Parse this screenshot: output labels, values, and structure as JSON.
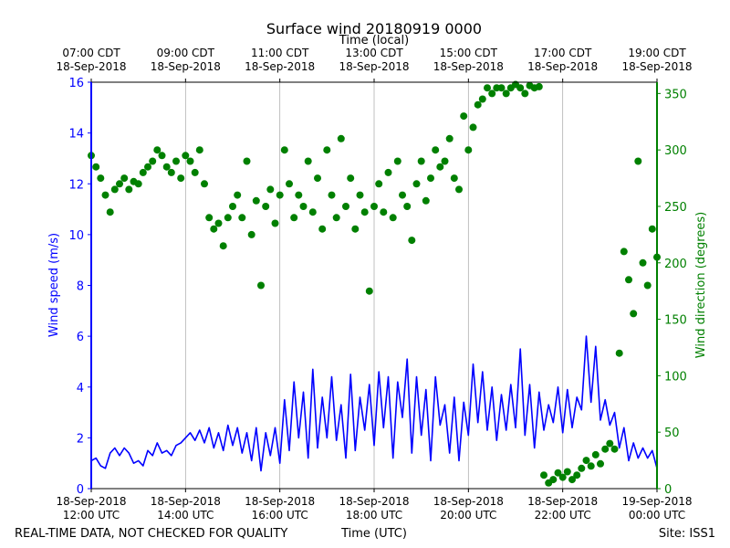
{
  "chart_data": {
    "type": "line",
    "title": "Surface wind 20180919 0000",
    "top_axis_label": "Time (local)",
    "xlabel": "Time (UTC)",
    "ylabel": "Wind speed (m/s)",
    "y2label": "Wind direction (degrees)",
    "footer_left": "REAL-TIME DATA, NOT CHECKED FOR QUALITY",
    "footer_right": "Site: ISS1",
    "xlim_hours_utc": [
      12,
      24
    ],
    "ylim": [
      0,
      16
    ],
    "y2lim": [
      0,
      360
    ],
    "grid": "vertical",
    "x_ticks_utc": [
      {
        "hour": 12,
        "date": "18-Sep-2018",
        "time": "12:00 UTC"
      },
      {
        "hour": 14,
        "date": "18-Sep-2018",
        "time": "14:00 UTC"
      },
      {
        "hour": 16,
        "date": "18-Sep-2018",
        "time": "16:00 UTC"
      },
      {
        "hour": 18,
        "date": "18-Sep-2018",
        "time": "18:00 UTC"
      },
      {
        "hour": 20,
        "date": "18-Sep-2018",
        "time": "20:00 UTC"
      },
      {
        "hour": 22,
        "date": "18-Sep-2018",
        "time": "22:00 UTC"
      },
      {
        "hour": 24,
        "date": "19-Sep-2018",
        "time": "00:00 UTC"
      }
    ],
    "x_ticks_local": [
      {
        "hour": 12,
        "time": "07:00 CDT",
        "date": "18-Sep-2018"
      },
      {
        "hour": 14,
        "time": "09:00 CDT",
        "date": "18-Sep-2018"
      },
      {
        "hour": 16,
        "time": "11:00 CDT",
        "date": "18-Sep-2018"
      },
      {
        "hour": 18,
        "time": "13:00 CDT",
        "date": "18-Sep-2018"
      },
      {
        "hour": 20,
        "time": "15:00 CDT",
        "date": "18-Sep-2018"
      },
      {
        "hour": 22,
        "time": "17:00 CDT",
        "date": "18-Sep-2018"
      },
      {
        "hour": 24,
        "time": "19:00 CDT",
        "date": "18-Sep-2018"
      }
    ],
    "y_ticks": [
      0,
      2,
      4,
      6,
      8,
      10,
      12,
      14,
      16
    ],
    "y2_ticks": [
      0,
      50,
      100,
      150,
      200,
      250,
      300,
      350
    ],
    "series": [
      {
        "name": "Wind speed",
        "axis": "left",
        "style": "line",
        "color": "#0000ff",
        "points": [
          [
            12.0,
            1.1
          ],
          [
            12.1,
            1.2
          ],
          [
            12.2,
            0.9
          ],
          [
            12.3,
            0.8
          ],
          [
            12.4,
            1.4
          ],
          [
            12.5,
            1.6
          ],
          [
            12.6,
            1.3
          ],
          [
            12.7,
            1.6
          ],
          [
            12.8,
            1.4
          ],
          [
            12.9,
            1.0
          ],
          [
            13.0,
            1.1
          ],
          [
            13.1,
            0.9
          ],
          [
            13.2,
            1.5
          ],
          [
            13.3,
            1.3
          ],
          [
            13.4,
            1.8
          ],
          [
            13.5,
            1.4
          ],
          [
            13.6,
            1.5
          ],
          [
            13.7,
            1.3
          ],
          [
            13.8,
            1.7
          ],
          [
            13.9,
            1.8
          ],
          [
            14.0,
            2.0
          ],
          [
            14.1,
            2.2
          ],
          [
            14.2,
            1.9
          ],
          [
            14.3,
            2.3
          ],
          [
            14.4,
            1.8
          ],
          [
            14.5,
            2.4
          ],
          [
            14.6,
            1.6
          ],
          [
            14.7,
            2.2
          ],
          [
            14.8,
            1.5
          ],
          [
            14.9,
            2.5
          ],
          [
            15.0,
            1.7
          ],
          [
            15.1,
            2.4
          ],
          [
            15.2,
            1.4
          ],
          [
            15.3,
            2.2
          ],
          [
            15.4,
            1.1
          ],
          [
            15.5,
            2.4
          ],
          [
            15.6,
            0.7
          ],
          [
            15.7,
            2.2
          ],
          [
            15.8,
            1.3
          ],
          [
            15.9,
            2.4
          ],
          [
            16.0,
            1.0
          ],
          [
            16.1,
            3.5
          ],
          [
            16.2,
            1.5
          ],
          [
            16.3,
            4.2
          ],
          [
            16.4,
            2.0
          ],
          [
            16.5,
            3.8
          ],
          [
            16.6,
            1.2
          ],
          [
            16.7,
            4.7
          ],
          [
            16.8,
            1.6
          ],
          [
            16.9,
            3.6
          ],
          [
            17.0,
            2.0
          ],
          [
            17.1,
            4.4
          ],
          [
            17.2,
            1.9
          ],
          [
            17.3,
            3.3
          ],
          [
            17.4,
            1.2
          ],
          [
            17.5,
            4.5
          ],
          [
            17.6,
            1.5
          ],
          [
            17.7,
            3.6
          ],
          [
            17.8,
            2.3
          ],
          [
            17.9,
            4.1
          ],
          [
            18.0,
            1.7
          ],
          [
            18.1,
            4.6
          ],
          [
            18.2,
            2.4
          ],
          [
            18.3,
            4.4
          ],
          [
            18.4,
            1.2
          ],
          [
            18.5,
            4.2
          ],
          [
            18.6,
            2.8
          ],
          [
            18.7,
            5.1
          ],
          [
            18.8,
            1.4
          ],
          [
            18.9,
            4.4
          ],
          [
            19.0,
            2.1
          ],
          [
            19.1,
            3.9
          ],
          [
            19.2,
            1.1
          ],
          [
            19.3,
            4.4
          ],
          [
            19.4,
            2.5
          ],
          [
            19.5,
            3.3
          ],
          [
            19.6,
            1.4
          ],
          [
            19.7,
            3.6
          ],
          [
            19.8,
            1.1
          ],
          [
            19.9,
            3.4
          ],
          [
            20.0,
            2.1
          ],
          [
            20.1,
            4.9
          ],
          [
            20.2,
            2.6
          ],
          [
            20.3,
            4.6
          ],
          [
            20.4,
            2.3
          ],
          [
            20.5,
            4.0
          ],
          [
            20.6,
            1.9
          ],
          [
            20.7,
            3.7
          ],
          [
            20.8,
            2.3
          ],
          [
            20.9,
            4.1
          ],
          [
            21.0,
            2.4
          ],
          [
            21.1,
            5.5
          ],
          [
            21.2,
            2.1
          ],
          [
            21.3,
            4.1
          ],
          [
            21.4,
            1.6
          ],
          [
            21.5,
            3.8
          ],
          [
            21.6,
            2.3
          ],
          [
            21.7,
            3.3
          ],
          [
            21.8,
            2.6
          ],
          [
            21.9,
            4.0
          ],
          [
            22.0,
            2.2
          ],
          [
            22.1,
            3.9
          ],
          [
            22.2,
            2.4
          ],
          [
            22.3,
            3.6
          ],
          [
            22.4,
            3.1
          ],
          [
            22.5,
            6.0
          ],
          [
            22.6,
            3.4
          ],
          [
            22.7,
            5.6
          ],
          [
            22.8,
            2.7
          ],
          [
            22.9,
            3.5
          ],
          [
            23.0,
            2.5
          ],
          [
            23.1,
            3.0
          ],
          [
            23.2,
            1.6
          ],
          [
            23.3,
            2.4
          ],
          [
            23.4,
            1.1
          ],
          [
            23.5,
            1.8
          ],
          [
            23.6,
            1.2
          ],
          [
            23.7,
            1.6
          ],
          [
            23.8,
            1.2
          ],
          [
            23.9,
            1.5
          ],
          [
            24.0,
            0.8
          ]
        ]
      },
      {
        "name": "Wind direction",
        "axis": "right",
        "style": "dots",
        "color": "#008000",
        "points": [
          [
            12.0,
            295
          ],
          [
            12.1,
            285
          ],
          [
            12.2,
            275
          ],
          [
            12.3,
            260
          ],
          [
            12.4,
            245
          ],
          [
            12.5,
            265
          ],
          [
            12.6,
            270
          ],
          [
            12.7,
            275
          ],
          [
            12.8,
            265
          ],
          [
            12.9,
            272
          ],
          [
            13.0,
            270
          ],
          [
            13.1,
            280
          ],
          [
            13.2,
            285
          ],
          [
            13.3,
            290
          ],
          [
            13.4,
            300
          ],
          [
            13.5,
            295
          ],
          [
            13.6,
            285
          ],
          [
            13.7,
            280
          ],
          [
            13.8,
            290
          ],
          [
            13.9,
            275
          ],
          [
            14.0,
            295
          ],
          [
            14.1,
            290
          ],
          [
            14.2,
            280
          ],
          [
            14.3,
            300
          ],
          [
            14.4,
            270
          ],
          [
            14.5,
            240
          ],
          [
            14.6,
            230
          ],
          [
            14.7,
            235
          ],
          [
            14.8,
            215
          ],
          [
            14.9,
            240
          ],
          [
            15.0,
            250
          ],
          [
            15.1,
            260
          ],
          [
            15.2,
            240
          ],
          [
            15.3,
            290
          ],
          [
            15.4,
            225
          ],
          [
            15.5,
            255
          ],
          [
            15.6,
            180
          ],
          [
            15.7,
            250
          ],
          [
            15.8,
            265
          ],
          [
            15.9,
            235
          ],
          [
            16.0,
            260
          ],
          [
            16.1,
            300
          ],
          [
            16.2,
            270
          ],
          [
            16.3,
            240
          ],
          [
            16.4,
            260
          ],
          [
            16.5,
            250
          ],
          [
            16.6,
            290
          ],
          [
            16.7,
            245
          ],
          [
            16.8,
            275
          ],
          [
            16.9,
            230
          ],
          [
            17.0,
            300
          ],
          [
            17.1,
            260
          ],
          [
            17.2,
            240
          ],
          [
            17.3,
            310
          ],
          [
            17.4,
            250
          ],
          [
            17.5,
            275
          ],
          [
            17.6,
            230
          ],
          [
            17.7,
            260
          ],
          [
            17.8,
            245
          ],
          [
            17.9,
            175
          ],
          [
            18.0,
            250
          ],
          [
            18.1,
            270
          ],
          [
            18.2,
            245
          ],
          [
            18.3,
            280
          ],
          [
            18.4,
            240
          ],
          [
            18.5,
            290
          ],
          [
            18.6,
            260
          ],
          [
            18.7,
            250
          ],
          [
            18.8,
            220
          ],
          [
            18.9,
            270
          ],
          [
            19.0,
            290
          ],
          [
            19.1,
            255
          ],
          [
            19.2,
            275
          ],
          [
            19.3,
            300
          ],
          [
            19.4,
            285
          ],
          [
            19.5,
            290
          ],
          [
            19.6,
            310
          ],
          [
            19.7,
            275
          ],
          [
            19.8,
            265
          ],
          [
            19.9,
            330
          ],
          [
            20.0,
            300
          ],
          [
            20.1,
            320
          ],
          [
            20.2,
            340
          ],
          [
            20.3,
            345
          ],
          [
            20.4,
            355
          ],
          [
            20.5,
            350
          ],
          [
            20.6,
            355
          ],
          [
            20.7,
            355
          ],
          [
            20.8,
            350
          ],
          [
            20.9,
            355
          ],
          [
            21.0,
            358
          ],
          [
            21.1,
            355
          ],
          [
            21.2,
            350
          ],
          [
            21.3,
            357
          ],
          [
            21.4,
            355
          ],
          [
            21.5,
            356
          ],
          [
            21.6,
            12
          ],
          [
            21.7,
            5
          ],
          [
            21.8,
            8
          ],
          [
            21.9,
            14
          ],
          [
            22.0,
            10
          ],
          [
            22.1,
            15
          ],
          [
            22.2,
            8
          ],
          [
            22.3,
            12
          ],
          [
            22.4,
            18
          ],
          [
            22.5,
            25
          ],
          [
            22.6,
            20
          ],
          [
            22.7,
            30
          ],
          [
            22.8,
            22
          ],
          [
            22.9,
            35
          ],
          [
            23.0,
            40
          ],
          [
            23.1,
            35
          ],
          [
            23.2,
            120
          ],
          [
            23.3,
            210
          ],
          [
            23.4,
            185
          ],
          [
            23.5,
            155
          ],
          [
            23.6,
            290
          ],
          [
            23.7,
            200
          ],
          [
            23.8,
            180
          ],
          [
            23.9,
            230
          ],
          [
            24.0,
            205
          ]
        ]
      }
    ]
  }
}
